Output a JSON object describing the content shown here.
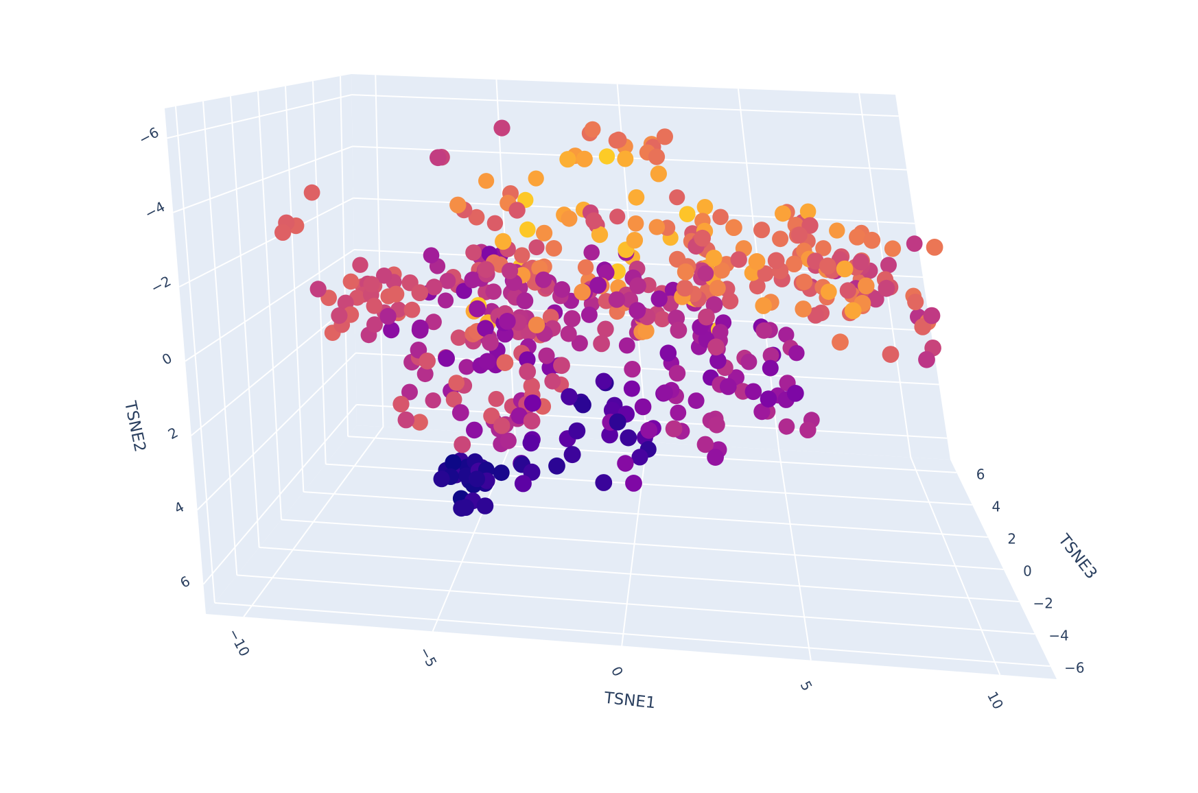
{
  "chart_data": {
    "type": "scatter",
    "dimensions": 3,
    "title": "",
    "axes": {
      "x": {
        "label": "TSNE1",
        "range": [
          -11,
          11.5
        ],
        "ticks": [
          -10,
          -5,
          0,
          5,
          10
        ],
        "tick_labels": [
          "−10",
          "−5",
          "0",
          "5",
          "10"
        ]
      },
      "y": {
        "label": "TSNE2",
        "range": [
          -6.8,
          6.8
        ],
        "ticks": [
          -6,
          -4,
          -2,
          0,
          2,
          4,
          6
        ],
        "tick_labels": [
          "−6",
          "−4",
          "−2",
          "0",
          "2",
          "4",
          "6"
        ],
        "reversed": true
      },
      "z": {
        "label": "TSNE3",
        "range": [
          -6.8,
          6.8
        ],
        "ticks": [
          -6,
          -4,
          -2,
          0,
          2,
          4,
          6
        ],
        "tick_labels": [
          "−6",
          "−4",
          "−2",
          "0",
          "2",
          "4",
          "6"
        ]
      }
    },
    "scene_background": "#e5ecf6",
    "grid": true,
    "legend": "none",
    "colorscale": "plasma",
    "colorscale_stops": [
      "#0d0887",
      "#46039f",
      "#7201a8",
      "#9c179e",
      "#bd3786",
      "#d8576b",
      "#ed7953",
      "#fb9f3a",
      "#fdca26",
      "#f0f921"
    ],
    "clusters": [
      {
        "x": [
          -6.0,
          -4.0
        ],
        "y": [
          4.5,
          5.5
        ],
        "z": [
          -2.0,
          1.0
        ],
        "color": [
          0.0,
          0.1
        ],
        "count": 24
      },
      {
        "x": [
          -4.2,
          -3.2
        ],
        "y": [
          3.0,
          4.0
        ],
        "z": [
          -0.5,
          0.5
        ],
        "color": [
          0.3,
          0.4
        ],
        "count": 4
      },
      {
        "x": [
          -9.5,
          -7.0
        ],
        "y": [
          -1.0,
          1.2
        ],
        "z": [
          -1.0,
          3.5
        ],
        "color": [
          0.45,
          0.6
        ],
        "count": 26
      },
      {
        "x": [
          -7.0,
          -2.0
        ],
        "y": [
          -1.5,
          3.5
        ],
        "z": [
          -3.0,
          3.0
        ],
        "color": [
          0.25,
          0.6
        ],
        "count": 95
      },
      {
        "x": [
          -4.5,
          3.5
        ],
        "y": [
          -4.0,
          0.5
        ],
        "z": [
          -2.0,
          3.0
        ],
        "color": [
          0.5,
          0.9
        ],
        "count": 85
      },
      {
        "x": [
          -4.5,
          3.5
        ],
        "y": [
          -2.0,
          1.0
        ],
        "z": [
          -3.0,
          2.0
        ],
        "color": [
          0.3,
          0.5
        ],
        "count": 70
      },
      {
        "x": [
          -3.0,
          1.0
        ],
        "y": [
          1.5,
          4.0
        ],
        "z": [
          -3.5,
          0.5
        ],
        "color": [
          0.05,
          0.3
        ],
        "count": 34
      },
      {
        "x": [
          1.0,
          6.0
        ],
        "y": [
          0.0,
          3.5
        ],
        "z": [
          -3.0,
          2.0
        ],
        "color": [
          0.25,
          0.45
        ],
        "count": 52
      },
      {
        "x": [
          2.0,
          8.0
        ],
        "y": [
          -3.5,
          -1.0
        ],
        "z": [
          -3.0,
          2.0
        ],
        "color": [
          0.55,
          0.8
        ],
        "count": 55
      },
      {
        "x": [
          6.0,
          10.0
        ],
        "y": [
          -3.5,
          0.0
        ],
        "z": [
          -3.0,
          3.0
        ],
        "color": [
          0.4,
          0.7
        ],
        "count": 48
      },
      {
        "x": [
          -1.5,
          2.5
        ],
        "y": [
          -6.0,
          -4.5
        ],
        "z": [
          -1.0,
          2.0
        ],
        "color": [
          0.6,
          0.95
        ],
        "count": 16
      },
      {
        "x": [
          -5.0,
          -3.0
        ],
        "y": [
          -6.0,
          -5.0
        ],
        "z": [
          -3.0,
          0.0
        ],
        "color": [
          0.45,
          0.5
        ],
        "count": 3
      },
      {
        "x": [
          -11.0,
          -9.5
        ],
        "y": [
          -3.5,
          -2.5
        ],
        "z": [
          -2.0,
          1.0
        ],
        "color": [
          0.55,
          0.6
        ],
        "count": 4
      }
    ]
  }
}
